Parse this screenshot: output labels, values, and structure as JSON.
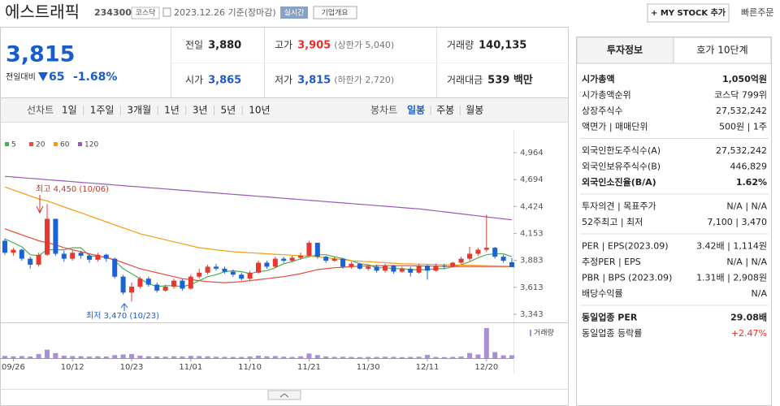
{
  "header": {
    "name": "에스트래픽",
    "code": "234300",
    "market": "코스닥",
    "date": "2023.12.26 기준(장마감)",
    "realtime": "실시간",
    "overview": "기업개요",
    "my_stock": "+ MY STOCK 추가",
    "quick_order": "빠른주문"
  },
  "price": {
    "current": "3,815",
    "change_label": "전일대비",
    "change": "65",
    "change_rate": "-1.68%",
    "color": "#1a5dc8"
  },
  "stats": [
    {
      "label": "전일",
      "value": "3,880",
      "color": "#222222"
    },
    {
      "label": "고가",
      "value": "3,905",
      "note": "(상한가 5,040)",
      "color": "#e5302a"
    },
    {
      "label": "거래량",
      "value": "140,135",
      "color": "#222222"
    },
    {
      "label": "시가",
      "value": "3,865",
      "color": "#1a5dc8"
    },
    {
      "label": "저가",
      "value": "3,815",
      "note": "(하한가 2,720)",
      "color": "#1a5dc8"
    },
    {
      "label": "거래대금",
      "value": "539 백만",
      "color": "#222222"
    }
  ],
  "tabs": {
    "line_chart": "선차트",
    "periods": [
      "1일",
      "1주일",
      "3개월",
      "1년",
      "3년",
      "5년",
      "10년"
    ],
    "candle_chart": "봉차트",
    "candle_periods": [
      "일봉",
      "주봉",
      "월봉"
    ],
    "active_candle_period": "일봉"
  },
  "chart_data": {
    "type": "candlestick",
    "categories": [
      null,
      "09/26",
      null,
      null,
      null,
      null,
      null,
      null,
      "10/12",
      null,
      null,
      null,
      null,
      null,
      null,
      "10/23",
      null,
      null,
      null,
      null,
      null,
      null,
      "11/01",
      null,
      null,
      null,
      null,
      null,
      null,
      "11/10",
      null,
      null,
      null,
      null,
      null,
      null,
      "11/21",
      null,
      null,
      null,
      null,
      null,
      null,
      "11/30",
      null,
      null,
      null,
      null,
      null,
      null,
      "12/11",
      null,
      null,
      null,
      null,
      null,
      null,
      "12/20",
      null,
      null,
      null
    ],
    "open": [
      4080,
      3960,
      3990,
      3900,
      3840,
      3940,
      4300,
      3950,
      3900,
      3960,
      3930,
      3890,
      3940,
      3900,
      3720,
      3560,
      3620,
      3700,
      3640,
      3580,
      3620,
      3680,
      3600,
      3720,
      3760,
      3820,
      3800,
      3770,
      3740,
      3700,
      3760,
      3860,
      3820,
      3900,
      3880,
      3910,
      3930,
      4060,
      3920,
      3880,
      3900,
      3820,
      3850,
      3800,
      3820,
      3780,
      3830,
      3770,
      3800,
      3760,
      3830,
      3780,
      3830,
      3820,
      3860,
      3900,
      3950,
      3990,
      4010,
      3920,
      3865
    ],
    "high": [
      4100,
      4010,
      4000,
      3920,
      3960,
      4450,
      4300,
      3980,
      3990,
      3980,
      3950,
      3960,
      3950,
      3910,
      3740,
      3660,
      3720,
      3720,
      3660,
      3640,
      3700,
      3700,
      3740,
      3800,
      3840,
      3850,
      3820,
      3790,
      3760,
      3780,
      3880,
      3880,
      3920,
      3920,
      3930,
      3960,
      4080,
      4060,
      3930,
      3920,
      3910,
      3870,
      3860,
      3840,
      3840,
      3850,
      3840,
      3820,
      3820,
      3850,
      3840,
      3850,
      3850,
      3870,
      3920,
      4020,
      4010,
      4340,
      4020,
      3940,
      3905
    ],
    "low": [
      3940,
      3930,
      3880,
      3800,
      3820,
      3930,
      3930,
      3870,
      3880,
      3900,
      3860,
      3870,
      3870,
      3700,
      3540,
      3470,
      3600,
      3620,
      3560,
      3570,
      3600,
      3580,
      3590,
      3700,
      3740,
      3780,
      3750,
      3720,
      3680,
      3680,
      3750,
      3800,
      3810,
      3860,
      3870,
      3890,
      3920,
      3900,
      3860,
      3870,
      3800,
      3800,
      3790,
      3780,
      3760,
      3760,
      3750,
      3760,
      3720,
      3750,
      3690,
      3770,
      3800,
      3810,
      3850,
      3880,
      3930,
      3970,
      3900,
      3860,
      3815
    ],
    "close": [
      3960,
      3990,
      3900,
      3840,
      3940,
      4300,
      3950,
      3900,
      3960,
      3930,
      3890,
      3940,
      3900,
      3720,
      3560,
      3620,
      3700,
      3640,
      3580,
      3620,
      3680,
      3600,
      3720,
      3760,
      3820,
      3800,
      3770,
      3740,
      3700,
      3760,
      3860,
      3820,
      3900,
      3880,
      3910,
      3930,
      4060,
      3920,
      3880,
      3900,
      3820,
      3850,
      3800,
      3820,
      3780,
      3830,
      3770,
      3800,
      3760,
      3830,
      3780,
      3830,
      3820,
      3860,
      3900,
      3950,
      3990,
      4010,
      3920,
      3880,
      3815
    ],
    "up_color": "#e8372f",
    "down_color": "#1a62d6",
    "series": [
      {
        "name": "5",
        "color": "#4caf50",
        "values": [
          4100,
          4060,
          4020,
          3940,
          3930,
          3990,
          3990,
          3990,
          4010,
          4010,
          3930,
          3920,
          3920,
          3880,
          3800,
          3750,
          3700,
          3650,
          3620,
          3630,
          3630,
          3620,
          3640,
          3680,
          3720,
          3740,
          3770,
          3780,
          3770,
          3750,
          3770,
          3780,
          3810,
          3850,
          3870,
          3900,
          3920,
          3940,
          3940,
          3920,
          3900,
          3880,
          3850,
          3840,
          3810,
          3810,
          3800,
          3800,
          3790,
          3790,
          3790,
          3800,
          3800,
          3820,
          3840,
          3870,
          3910,
          3940,
          3950,
          3950,
          3920
        ]
      },
      {
        "name": "20",
        "color": "#e74c3c",
        "values": [
          4200,
          4170,
          4140,
          4110,
          4080,
          4060,
          4040,
          4010,
          3990,
          3970,
          3950,
          3930,
          3910,
          3890,
          3860,
          3830,
          3800,
          3780,
          3760,
          3740,
          3720,
          3700,
          3690,
          3680,
          3670,
          3665,
          3660,
          3665,
          3670,
          3680,
          3690,
          3700,
          3710,
          3720,
          3735,
          3750,
          3770,
          3790,
          3800,
          3810,
          3815,
          3820,
          3825,
          3828,
          3830,
          3830,
          3830,
          3830,
          3830,
          3828,
          3826,
          3825,
          3824,
          3823,
          3822,
          3822,
          3822,
          3822,
          3822,
          3821,
          3820
        ]
      },
      {
        "name": "60",
        "color": "#f39c12",
        "values": [
          4620,
          4590,
          4560,
          4530,
          4500,
          4480,
          4450,
          4420,
          4390,
          4360,
          4330,
          4300,
          4270,
          4240,
          4210,
          4180,
          4150,
          4130,
          4110,
          4090,
          4070,
          4050,
          4030,
          4010,
          4000,
          3990,
          3980,
          3970,
          3965,
          3960,
          3955,
          3950,
          3945,
          3940,
          3935,
          3930,
          3925,
          3920,
          3910,
          3900,
          3890,
          3880,
          3875,
          3870,
          3865,
          3860,
          3855,
          3850,
          3848,
          3846,
          3844,
          3842,
          3840,
          3838,
          3836,
          3834,
          3832,
          3830,
          3828,
          3826,
          3824
        ]
      },
      {
        "name": "120",
        "color": "#9b59b6",
        "values": [
          4726,
          4720,
          4713,
          4706,
          4700,
          4693,
          4686,
          4680,
          4673,
          4666,
          4660,
          4653,
          4646,
          4640,
          4633,
          4626,
          4620,
          4613,
          4606,
          4600,
          4593,
          4586,
          4580,
          4573,
          4566,
          4560,
          4553,
          4546,
          4540,
          4533,
          4526,
          4520,
          4513,
          4506,
          4500,
          4493,
          4486,
          4480,
          4473,
          4466,
          4460,
          4453,
          4446,
          4440,
          4433,
          4426,
          4420,
          4413,
          4406,
          4400,
          4390,
          4380,
          4370,
          4360,
          4350,
          4340,
          4330,
          4320,
          4310,
          4300,
          4290
        ]
      }
    ],
    "volume_label": "거래량",
    "volume_color": "#a88fd6",
    "volume": [
      110000,
      90000,
      100000,
      80000,
      200000,
      420000,
      250000,
      120000,
      100000,
      90000,
      80000,
      90000,
      80000,
      150000,
      180000,
      200000,
      120000,
      90000,
      80000,
      70000,
      90000,
      80000,
      110000,
      100000,
      90000,
      70000,
      60000,
      60000,
      60000,
      80000,
      120000,
      90000,
      100000,
      70000,
      60000,
      90000,
      230000,
      150000,
      80000,
      60000,
      70000,
      60000,
      50000,
      60000,
      60000,
      70000,
      60000,
      50000,
      60000,
      70000,
      160000,
      60000,
      50000,
      60000,
      80000,
      250000,
      180000,
      1500000,
      300000,
      140000,
      140135
    ],
    "ylim": [
      3343,
      4964
    ],
    "yticks": [
      {
        "value": 4964,
        "label": "4,964"
      },
      {
        "value": 4694,
        "label": "4,694"
      },
      {
        "value": 4424,
        "label": "4,424"
      },
      {
        "value": 4153,
        "label": "4,153"
      },
      {
        "value": 3883,
        "label": "3,883"
      },
      {
        "value": 3613,
        "label": "3,613"
      },
      {
        "value": 3343,
        "label": "3,343"
      }
    ],
    "annotations": [
      "최고 4,450 (10/06)",
      "최저 3,470 (10/23)"
    ]
  },
  "sidebar": {
    "tabs": [
      "투자정보",
      "호가 10단계"
    ],
    "groups": [
      [
        {
          "label": "시가총액",
          "value": "1,050억원",
          "strong": true
        },
        {
          "label": "시가총액순위",
          "value": "코스닥 799위"
        },
        {
          "label": "상장주식수",
          "value": "27,532,242"
        },
        {
          "label": "액면가 | 매매단위",
          "value": "500원 | 1주"
        }
      ],
      [
        {
          "label": "외국인한도주식수(A)",
          "value": "27,532,242"
        },
        {
          "label": "외국인보유주식수(B)",
          "value": "446,829"
        },
        {
          "label": "외국인소진율(B/A)",
          "value": "1.62%",
          "strong": true
        }
      ],
      [
        {
          "label": "투자의견 | 목표주가",
          "value": "N/A | N/A"
        },
        {
          "label": "52주최고 | 최저",
          "value": "7,100 | 3,470"
        }
      ],
      [
        {
          "label": "PER | EPS(2023.09)",
          "value": "3.42배 | 1,114원"
        },
        {
          "label": "추정PER | EPS",
          "value": "N/A | N/A"
        },
        {
          "label": "PBR | BPS (2023.09)",
          "value": "1.31배 | 2,908원"
        },
        {
          "label": "배당수익률",
          "value": "N/A"
        }
      ],
      [
        {
          "label": "동일업종 PER",
          "value": "29.08배",
          "strong": true
        },
        {
          "label": "동일업종 등락률",
          "value": "+2.47%",
          "color": "#e5302a"
        }
      ]
    ]
  }
}
